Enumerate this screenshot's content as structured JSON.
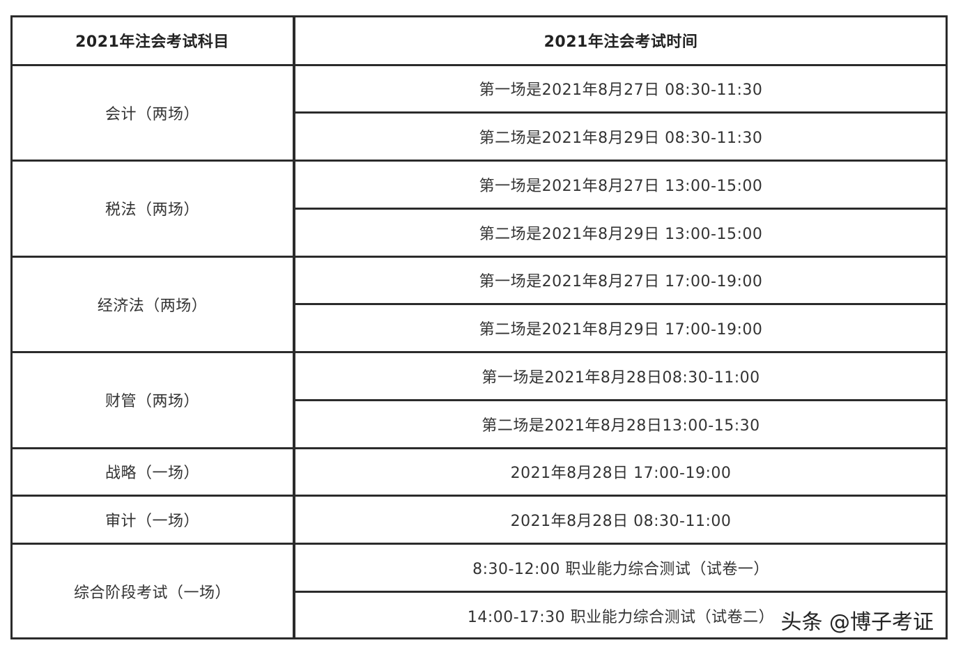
{
  "table": {
    "header": [
      "2021年注会考试科目",
      "2021年注会考试时间"
    ],
    "rows": [
      {
        "subject": "会计（两场）",
        "times": [
          "第一场是2021年8月27日 08:30-11:30",
          "第二场是2021年8月29日 08:30-11:30"
        ]
      },
      {
        "subject": "税法（两场）",
        "times": [
          "第一场是2021年8月27日 13:00-15:00",
          "第二场是2021年8月29日 13:00-15:00"
        ]
      },
      {
        "subject": "经济法（两场）",
        "times": [
          "第一场是2021年8月27日 17:00-19:00",
          "第二场是2021年8月29日 17:00-19:00"
        ]
      },
      {
        "subject": "财管（两场）",
        "times": [
          "第一场是2021年8月28日08:30-11:00",
          "第二场是2021年8月28日13:00-15:30"
        ]
      },
      {
        "subject": "战略（一场）",
        "times": [
          "2021年8月28日 17:00-19:00"
        ]
      },
      {
        "subject": "审计（一场）",
        "times": [
          "2021年8月28日 08:30-11:00"
        ]
      },
      {
        "subject": "综合阶段考试（一场）",
        "times": [
          "8:30-12:00 职业能力综合测试（试卷一）",
          "14:00-17:30 职业能力综合测试（试卷二）"
        ]
      }
    ]
  },
  "watermark": "头条 @博子考证"
}
